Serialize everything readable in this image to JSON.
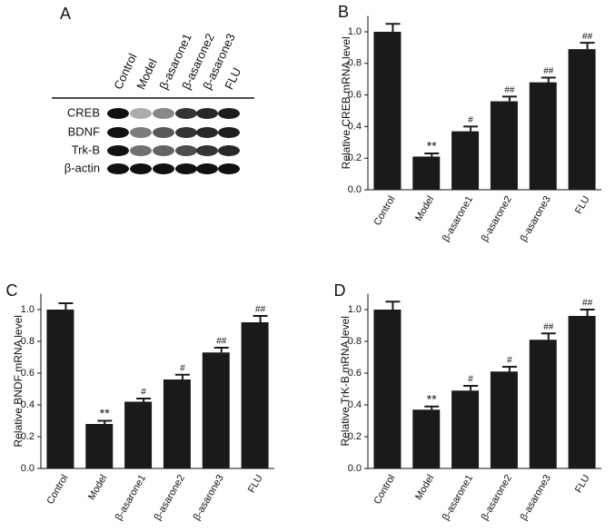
{
  "blot": {
    "panel_label": "A",
    "lanes": [
      "Control",
      "Model",
      "β-asarone1",
      "β-asarone2",
      "β-asarone3",
      "FLU"
    ],
    "rows": [
      "CREB",
      "BDNF",
      "Trk-B",
      "β-actin"
    ]
  },
  "chart_data": [
    {
      "type": "bar",
      "panel_label": "B",
      "y_label": "Relative CREB mRNA level",
      "categories": [
        "Control",
        "Model",
        "β-asarone1",
        "β-asarone2",
        "β-asarone3",
        "FLU"
      ],
      "values": [
        1.0,
        0.21,
        0.37,
        0.56,
        0.68,
        0.89
      ],
      "errors": [
        0.05,
        0.02,
        0.03,
        0.03,
        0.03,
        0.04
      ],
      "annotations": [
        null,
        "**",
        "#",
        "##",
        "##",
        "##"
      ],
      "color": "#1a1a1a",
      "ylim": [
        0,
        1.1
      ],
      "yticks": [
        {
          "value": 0,
          "label": "0.0"
        },
        0.2,
        0.4,
        0.6,
        0.8,
        {
          "value": 1,
          "label": "1.0"
        }
      ]
    },
    {
      "type": "bar",
      "panel_label": "C",
      "y_label": "Relative BNDF mRNA level",
      "categories": [
        "Control",
        "Model",
        "β-asarone1",
        "β-asarone2",
        "β-asarone3",
        "FLU"
      ],
      "values": [
        1.0,
        0.28,
        0.42,
        0.56,
        0.73,
        0.92
      ],
      "errors": [
        0.04,
        0.02,
        0.02,
        0.03,
        0.03,
        0.04
      ],
      "annotations": [
        null,
        "**",
        "#",
        "#",
        "##",
        "##"
      ],
      "color": "#1a1a1a",
      "ylim": [
        0,
        1.1
      ],
      "yticks": [
        {
          "value": 0,
          "label": "0.0"
        },
        0.2,
        0.4,
        0.6,
        0.8,
        {
          "value": 1,
          "label": "1.0"
        }
      ]
    },
    {
      "type": "bar",
      "panel_label": "D",
      "y_label": "Relative TrK-B mRNA level",
      "categories": [
        "Control",
        "Model",
        "β-asarone1",
        "β-asarone2",
        "β-asarone3",
        "FLU"
      ],
      "values": [
        1.0,
        0.37,
        0.49,
        0.61,
        0.81,
        0.96
      ],
      "errors": [
        0.05,
        0.02,
        0.03,
        0.03,
        0.04,
        0.04
      ],
      "annotations": [
        null,
        "**",
        "#",
        "#",
        "##",
        "##"
      ],
      "color": "#1a1a1a",
      "ylim": [
        0,
        1.1
      ],
      "yticks": [
        {
          "value": 0,
          "label": "0.0"
        },
        0.2,
        0.4,
        0.6,
        0.8,
        {
          "value": 1,
          "label": "1.0"
        }
      ]
    }
  ]
}
